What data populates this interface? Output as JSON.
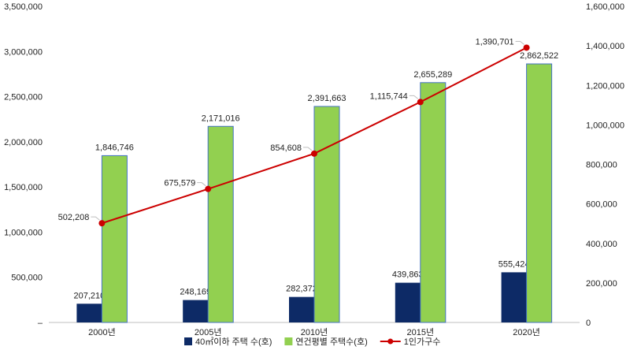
{
  "chart_data": {
    "type": "bar",
    "categories": [
      "2000년",
      "2005년",
      "2010년",
      "2015년",
      "2020년"
    ],
    "series": [
      {
        "name": "40㎡이하 주택 수(호)",
        "kind": "bar",
        "axis": "left",
        "color": "#0d2a66",
        "values": [
          207210,
          248169,
          282372,
          439863,
          555424
        ],
        "labels": [
          "207,210",
          "248,169",
          "282,372",
          "439,863",
          "555,424"
        ]
      },
      {
        "name": "연건평별 주택수(호)",
        "kind": "bar",
        "axis": "left",
        "color": "#92d050",
        "values": [
          1846746,
          2171016,
          2391663,
          2655289,
          2862522
        ],
        "labels": [
          "1,846,746",
          "2,171,016",
          "2,391,663",
          "2,655,289",
          "2,862,522"
        ]
      },
      {
        "name": "1인가구수",
        "kind": "line",
        "axis": "right",
        "color": "#cc0000",
        "values": [
          502208,
          675579,
          854608,
          1115744,
          1390701
        ],
        "labels": [
          "502,208",
          "675,579",
          "854,608",
          "1,115,744",
          "1,390,701"
        ]
      }
    ],
    "y_left": {
      "range": [
        0,
        3500000
      ],
      "ticks": [
        0,
        500000,
        1000000,
        1500000,
        2000000,
        2500000,
        3000000,
        3500000
      ],
      "tick_labels": [
        "–",
        "500,000",
        "1,000,000",
        "1,500,000",
        "2,000,000",
        "2,500,000",
        "3,000,000",
        "3,500,000"
      ]
    },
    "y_right": {
      "range": [
        0,
        1600000
      ],
      "ticks": [
        0,
        200000,
        400000,
        600000,
        800000,
        1000000,
        1200000,
        1400000,
        1600000
      ],
      "tick_labels": [
        "0",
        "200,000",
        "400,000",
        "600,000",
        "800,000",
        "1,000,000",
        "1,200,000",
        "1,400,000",
        "1,600,000"
      ]
    },
    "title": "",
    "xlabel": "",
    "ylabel": "",
    "grid": false,
    "legend": "bottom-center"
  }
}
